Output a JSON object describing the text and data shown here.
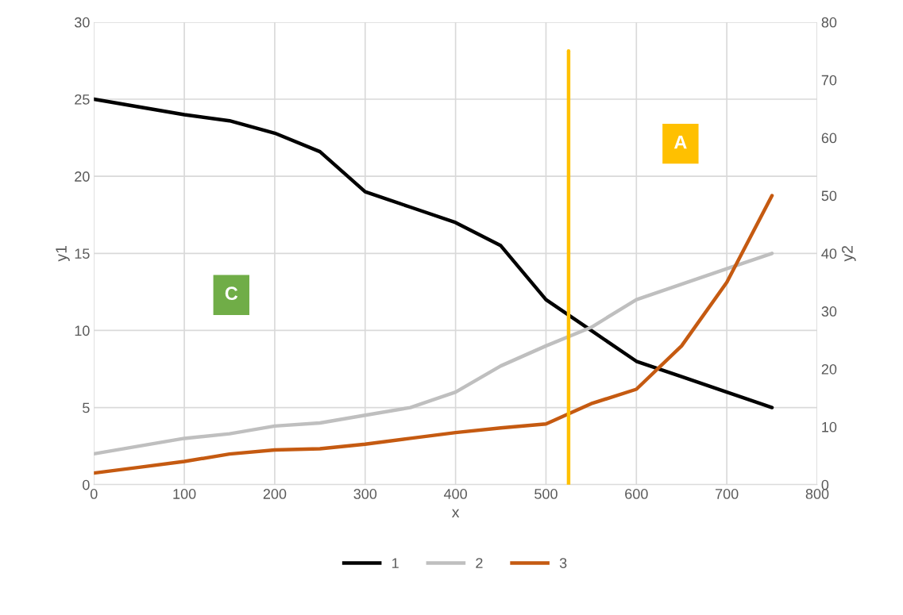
{
  "chart_data": {
    "type": "line",
    "xlabel": "x",
    "ylabel": "y1",
    "y2label": "y2",
    "xlim": [
      0,
      800
    ],
    "xticks": [
      0,
      100,
      200,
      300,
      400,
      500,
      600,
      700,
      800
    ],
    "ylim": [
      0,
      30
    ],
    "yticks": [
      0,
      5,
      10,
      15,
      20,
      25,
      30
    ],
    "y2lim": [
      0,
      80
    ],
    "y2ticks": [
      0,
      10,
      20,
      30,
      40,
      50,
      60,
      70,
      80
    ],
    "grid": true,
    "legend": "bottom",
    "marker": "none",
    "line_style": "solid",
    "series": [
      {
        "name": "1",
        "color": "#000000",
        "x": [
          0,
          50,
          100,
          150,
          200,
          250,
          300,
          350,
          400,
          450,
          500,
          550,
          600,
          650,
          700,
          750
        ],
        "values": [
          25,
          24.5,
          24,
          23.6,
          22.8,
          21.6,
          19,
          18,
          17,
          15.5,
          12,
          10,
          8,
          7,
          6,
          5
        ]
      },
      {
        "name": "2",
        "color": "#bfbfbf",
        "x": [
          0,
          50,
          100,
          150,
          200,
          250,
          300,
          350,
          400,
          450,
          500,
          550,
          600,
          650,
          700,
          750
        ],
        "values": [
          2,
          2.5,
          3,
          3.3,
          3.8,
          4,
          4.5,
          5,
          6,
          7.7,
          9,
          10.2,
          12,
          13,
          14,
          15
        ]
      },
      {
        "name": "3",
        "color": "#c55a11",
        "axis": "y2",
        "x": [
          0,
          50,
          100,
          150,
          200,
          250,
          300,
          350,
          400,
          450,
          500,
          550,
          600,
          650,
          700,
          750
        ],
        "values": [
          2,
          3,
          4,
          5.3,
          6,
          6.2,
          7,
          8,
          9,
          9.8,
          10.5,
          14,
          16.5,
          24,
          35,
          50
        ]
      },
      {
        "color": "#ffc000",
        "axis": "y2",
        "x": [
          525,
          525
        ],
        "values": [
          0,
          75
        ]
      }
    ],
    "annotations": [
      "A",
      "C"
    ]
  }
}
